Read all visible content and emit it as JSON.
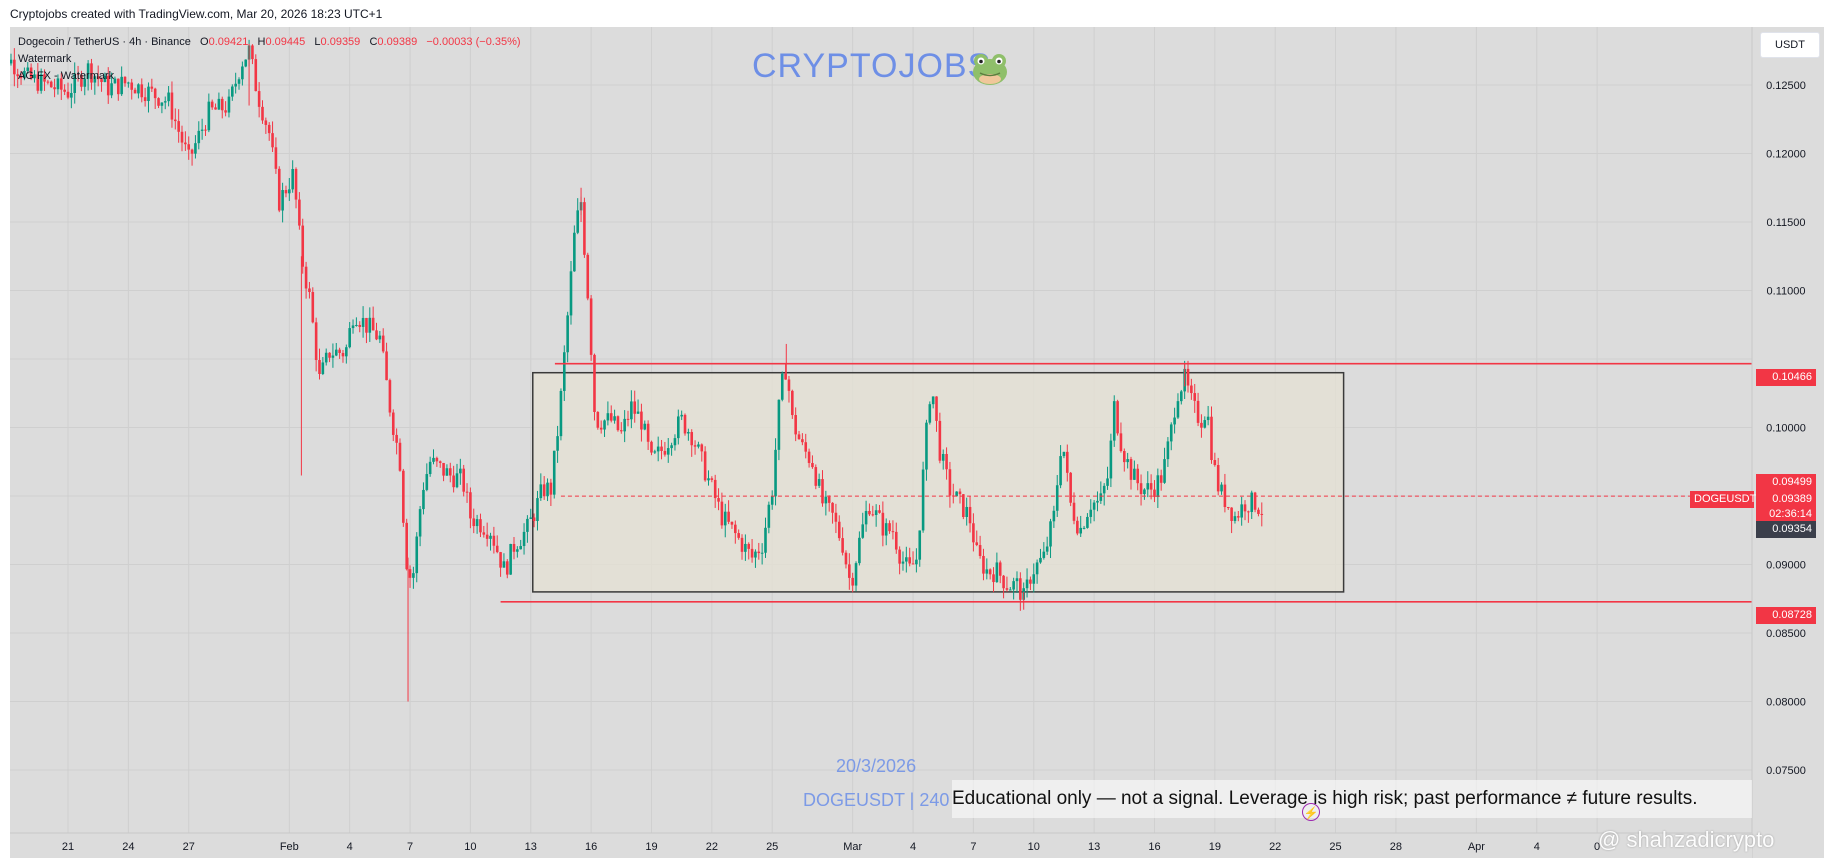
{
  "header": {
    "credit": "Cryptojobs created with TradingView.com, Mar 20, 2026 18:23 UTC+1"
  },
  "legend": {
    "symbol_line": "Dogecoin / TetherUS · 4h · Binance",
    "open_label": "O",
    "open": "0.09421",
    "high_label": "H",
    "high": "0.09445",
    "low_label": "L",
    "low": "0.09359",
    "close_label": "C",
    "close": "0.09389",
    "change": "−0.00033 (−0.35%)",
    "line2": "Watermark",
    "line3": "AG FX - Watermark"
  },
  "brand": {
    "text": "CRYPTOJOBS",
    "icon": "frog-icon"
  },
  "currency_button": "USDT",
  "watermark": {
    "date": "20/3/2026",
    "pair": "DOGEUSDT | 240"
  },
  "disclaimer": "Educational only — not a signal. Leverage is high risk; past performance ≠ future results.",
  "handle": "@ shahzadicrypto",
  "price_tags": {
    "resistance": "0.10466",
    "support": "0.08728",
    "high_tag": "0.09499",
    "symbol": "DOGEUSDT",
    "last": "0.09389",
    "countdown": "02:36:14",
    "low_tag": "0.09354"
  },
  "colors": {
    "up": "#089981",
    "down": "#f23645",
    "level_line": "#f23645",
    "box_fill": "#e6e2d4",
    "box_border": "#3a3a3a",
    "background": "#dcdcdc",
    "watermark": "#6e8fe6"
  },
  "chart_data": {
    "type": "candlestick",
    "title": "Dogecoin / TetherUS · 4h · Binance",
    "ylim": [
      0.0735,
      0.1285
    ],
    "y_ticks": [
      0.075,
      0.08,
      0.085,
      0.09,
      0.095,
      0.1,
      0.105,
      0.11,
      0.115,
      0.12,
      0.125
    ],
    "y_tick_labels": [
      "0.07500",
      "0.08000",
      "0.08500",
      "0.09000",
      "",
      "0.10000",
      "",
      "0.11000",
      "0.11500",
      "0.12000",
      "0.12500"
    ],
    "x_start": "Jan 17",
    "x_end": "Apr 7",
    "x_ticks": [
      {
        "label": "21",
        "day": 4
      },
      {
        "label": "24",
        "day": 7
      },
      {
        "label": "27",
        "day": 10
      },
      {
        "label": "Feb",
        "day": 15
      },
      {
        "label": "4",
        "day": 18
      },
      {
        "label": "7",
        "day": 21
      },
      {
        "label": "10",
        "day": 24
      },
      {
        "label": "13",
        "day": 27
      },
      {
        "label": "16",
        "day": 30
      },
      {
        "label": "19",
        "day": 33
      },
      {
        "label": "22",
        "day": 36
      },
      {
        "label": "25",
        "day": 39
      },
      {
        "label": "Mar",
        "day": 43
      },
      {
        "label": "4",
        "day": 46
      },
      {
        "label": "7",
        "day": 49
      },
      {
        "label": "10",
        "day": 52
      },
      {
        "label": "13",
        "day": 55
      },
      {
        "label": "16",
        "day": 58
      },
      {
        "label": "19",
        "day": 61
      },
      {
        "label": "22",
        "day": 64
      },
      {
        "label": "25",
        "day": 67
      },
      {
        "label": "28",
        "day": 70
      },
      {
        "label": "Apr",
        "day": 74
      },
      {
        "label": "4",
        "day": 77
      },
      {
        "label": "0",
        "day": 80
      }
    ],
    "price_path": [
      [
        0,
        0.1265
      ],
      [
        1,
        0.127
      ],
      [
        2,
        0.1255
      ],
      [
        3,
        0.125
      ],
      [
        4,
        0.1245
      ],
      [
        5,
        0.1262
      ],
      [
        6,
        0.1248
      ],
      [
        7,
        0.1252
      ],
      [
        8,
        0.1245
      ],
      [
        9,
        0.1238
      ],
      [
        10,
        0.1195
      ],
      [
        11,
        0.123
      ],
      [
        12,
        0.1235
      ],
      [
        12.6,
        0.1266
      ],
      [
        13,
        0.1275
      ],
      [
        13.4,
        0.1245
      ],
      [
        14,
        0.1215
      ],
      [
        14.5,
        0.1165
      ],
      [
        15.2,
        0.1185
      ],
      [
        15.6,
        0.1125
      ],
      [
        16,
        0.1095
      ],
      [
        16.5,
        0.1035
      ],
      [
        17,
        0.1055
      ],
      [
        17.8,
        0.1055
      ],
      [
        18.2,
        0.1085
      ],
      [
        18.8,
        0.1075
      ],
      [
        19.5,
        0.1065
      ],
      [
        20,
        0.1015
      ],
      [
        20.5,
        0.0975
      ],
      [
        20.8,
        0.0905
      ],
      [
        21.1,
        0.0885
      ],
      [
        21.6,
        0.0955
      ],
      [
        22,
        0.0975
      ],
      [
        23,
        0.0965
      ],
      [
        23.6,
        0.0962
      ],
      [
        24,
        0.0935
      ],
      [
        25,
        0.0925
      ],
      [
        25.7,
        0.0895
      ],
      [
        26.2,
        0.0915
      ],
      [
        26.8,
        0.0925
      ],
      [
        27.1,
        0.0935
      ],
      [
        27.6,
        0.0955
      ],
      [
        28,
        0.0955
      ],
      [
        28.4,
        0.1005
      ],
      [
        28.8,
        0.1075
      ],
      [
        29.2,
        0.1145
      ],
      [
        29.5,
        0.1165
      ],
      [
        29.9,
        0.1085
      ],
      [
        30.2,
        0.1005
      ],
      [
        31,
        0.1005
      ],
      [
        31.5,
        0.0995
      ],
      [
        32,
        0.1015
      ],
      [
        32.5,
        0.1005
      ],
      [
        33,
        0.0975
      ],
      [
        33.6,
        0.0985
      ],
      [
        34,
        0.0995
      ],
      [
        34.5,
        0.1005
      ],
      [
        35,
        0.0995
      ],
      [
        35.5,
        0.0975
      ],
      [
        36,
        0.0955
      ],
      [
        36.5,
        0.0935
      ],
      [
        37,
        0.0925
      ],
      [
        37.5,
        0.0915
      ],
      [
        38,
        0.0905
      ],
      [
        38.5,
        0.0915
      ],
      [
        39,
        0.0955
      ],
      [
        39.4,
        0.1025
      ],
      [
        39.7,
        0.1045
      ],
      [
        40,
        0.1005
      ],
      [
        40.5,
        0.0985
      ],
      [
        41,
        0.0975
      ],
      [
        41.5,
        0.0945
      ],
      [
        42,
        0.0935
      ],
      [
        42.5,
        0.0915
      ],
      [
        42.9,
        0.0885
      ],
      [
        43.3,
        0.0915
      ],
      [
        43.8,
        0.0945
      ],
      [
        44.2,
        0.0935
      ],
      [
        44.6,
        0.0925
      ],
      [
        45,
        0.0925
      ],
      [
        45.4,
        0.0905
      ],
      [
        45.8,
        0.0895
      ],
      [
        46.2,
        0.0905
      ],
      [
        46.6,
        0.0985
      ],
      [
        46.9,
        0.1035
      ],
      [
        47.3,
        0.0985
      ],
      [
        47.8,
        0.0955
      ],
      [
        48.3,
        0.0945
      ],
      [
        48.8,
        0.0935
      ],
      [
        49.2,
        0.0905
      ],
      [
        49.7,
        0.0895
      ],
      [
        50.2,
        0.0895
      ],
      [
        50.7,
        0.0885
      ],
      [
        51.2,
        0.0885
      ],
      [
        51.5,
        0.0875
      ],
      [
        51.9,
        0.0895
      ],
      [
        52.5,
        0.0905
      ],
      [
        53,
        0.0935
      ],
      [
        53.4,
        0.0995
      ],
      [
        53.8,
        0.0945
      ],
      [
        54.3,
        0.0925
      ],
      [
        54.8,
        0.0945
      ],
      [
        55.3,
        0.0945
      ],
      [
        55.7,
        0.0965
      ],
      [
        56,
        0.1015
      ],
      [
        56.4,
        0.0985
      ],
      [
        56.9,
        0.0965
      ],
      [
        57.4,
        0.0955
      ],
      [
        57.9,
        0.0955
      ],
      [
        58.4,
        0.0965
      ],
      [
        58.8,
        0.0995
      ],
      [
        59.1,
        0.1025
      ],
      [
        59.5,
        0.1035
      ],
      [
        59.9,
        0.1015
      ],
      [
        60.3,
        0.1005
      ],
      [
        60.6,
        0.1015
      ],
      [
        60.9,
        0.0975
      ],
      [
        61.2,
        0.0955
      ],
      [
        61.6,
        0.0945
      ],
      [
        62,
        0.0935
      ],
      [
        62.5,
        0.0945
      ],
      [
        63,
        0.0945
      ],
      [
        63.4,
        0.0939
      ]
    ],
    "levels": [
      {
        "name": "resistance",
        "value": 0.10466,
        "from_day": 28.2
      },
      {
        "name": "support",
        "value": 0.08728,
        "from_day": 25.5
      }
    ],
    "range_box": {
      "from_day": 27.1,
      "to_day": 67.4,
      "top": 0.104,
      "bottom": 0.088
    },
    "current_price_line": {
      "value": 0.09499,
      "from_day": 28.5
    },
    "grid": true
  }
}
